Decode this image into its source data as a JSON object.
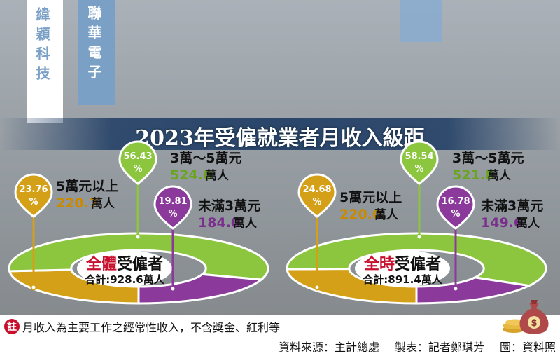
{
  "banners": {
    "left": "緯穎科技",
    "middle": "聯華電子"
  },
  "header": {
    "title": "2023年受僱就業者月收入級距"
  },
  "chart_data": [
    {
      "type": "pie",
      "center_title_highlight": "全體",
      "center_title_rest": "受僱者",
      "total_label": "合計:928.6萬人",
      "slices": [
        {
          "label": "5萬元以上",
          "value": 220.7,
          "unit": "萬人",
          "percent": 23.76,
          "color": "#d4a017"
        },
        {
          "label": "3萬～5萬元",
          "value": 524.0,
          "unit": "萬人",
          "percent": 56.43,
          "color": "#8cc63f"
        },
        {
          "label": "未滿3萬元",
          "value": 184.0,
          "unit": "萬人",
          "percent": 19.81,
          "color": "#8b3a9c"
        }
      ]
    },
    {
      "type": "pie",
      "center_title_highlight": "全時",
      "center_title_rest": "受僱者",
      "total_label": "合計:891.4萬人",
      "slices": [
        {
          "label": "5萬元以上",
          "value": 220.0,
          "unit": "萬人",
          "percent": 24.68,
          "color": "#d4a017"
        },
        {
          "label": "3萬～5萬元",
          "value": 521.8,
          "unit": "萬人",
          "percent": 58.54,
          "color": "#8cc63f"
        },
        {
          "label": "未滿3萬元",
          "value": 149.6,
          "unit": "萬人",
          "percent": 16.78,
          "color": "#8b3a9c"
        }
      ]
    }
  ],
  "colors": {
    "highlight_red": "#c8102e",
    "value_orange": "#c98a00",
    "value_green": "#6aa51e",
    "value_purple": "#7a2d8c"
  },
  "notes": {
    "badge": "註",
    "text": "月收入為主要工作之經常性收入，不含獎金、紅利等",
    "source": "資料來源：主計總處",
    "made_by": "製表：記者鄭琪芳",
    "photo": "圖：資料照"
  },
  "icons": {
    "money": "money-bag-icon"
  }
}
